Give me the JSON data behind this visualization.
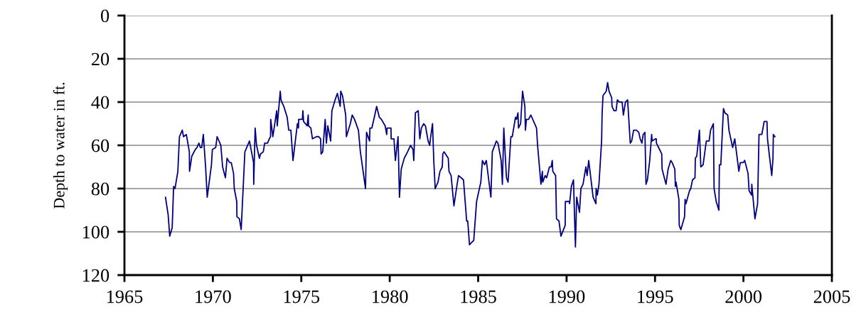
{
  "chart_data": {
    "type": "line",
    "ylabel": "Depth to water in ft.",
    "xlim": [
      1965,
      2005
    ],
    "xticks": [
      1965,
      1970,
      1975,
      1980,
      1985,
      1990,
      1995,
      2000,
      2005
    ],
    "ylim": [
      120,
      0
    ],
    "yticks": [
      0,
      20,
      40,
      60,
      80,
      100,
      120
    ],
    "grid": "y",
    "marker": "none",
    "line_style": "solid",
    "series": [
      {
        "color": "#000080",
        "x": [
          1967.32,
          1967.47,
          1967.56,
          1967.7,
          1967.78,
          1967.86,
          1968.02,
          1968.11,
          1968.27,
          1968.34,
          1968.5,
          1968.67,
          1968.68,
          1968.81,
          1969.0,
          1969.1,
          1969.21,
          1969.29,
          1969.37,
          1969.46,
          1969.59,
          1969.68,
          1969.92,
          1969.97,
          1970.16,
          1970.24,
          1970.45,
          1970.55,
          1970.71,
          1970.8,
          1970.95,
          1971.04,
          1971.17,
          1971.21,
          1971.35,
          1971.36,
          1971.5,
          1971.6,
          1971.81,
          1972.07,
          1972.3,
          1972.31,
          1972.39,
          1972.47,
          1972.63,
          1972.69,
          1972.85,
          1972.93,
          1973.09,
          1973.19,
          1973.26,
          1973.27,
          1973.39,
          1973.61,
          1973.64,
          1973.81,
          1973.85,
          1974.01,
          1974.2,
          1974.29,
          1974.41,
          1974.53,
          1974.78,
          1974.84,
          1974.85,
          1975.06,
          1975.09,
          1975.13,
          1975.33,
          1975.39,
          1975.41,
          1975.54,
          1975.63,
          1975.86,
          1975.99,
          1976.09,
          1976.12,
          1976.21,
          1976.35,
          1976.42,
          1976.5,
          1976.66,
          1976.73,
          1976.91,
          1977.04,
          1977.2,
          1977.23,
          1977.33,
          1977.51,
          1977.55,
          1977.77,
          1977.88,
          1978.01,
          1978.23,
          1978.34,
          1978.63,
          1978.69,
          1978.86,
          1978.88,
          1978.99,
          1979.13,
          1979.26,
          1979.41,
          1979.53,
          1979.74,
          1979.83,
          1979.85,
          1980.07,
          1980.08,
          1980.24,
          1980.32,
          1980.47,
          1980.55,
          1980.65,
          1980.82,
          1981.01,
          1981.18,
          1981.32,
          1981.36,
          1981.45,
          1981.61,
          1981.7,
          1981.79,
          1981.92,
          1982.02,
          1982.17,
          1982.26,
          1982.3,
          1982.42,
          1982.49,
          1982.57,
          1982.73,
          1982.84,
          1982.97,
          1983.0,
          1983.07,
          1983.31,
          1983.35,
          1983.47,
          1983.63,
          1983.81,
          1983.89,
          1984.04,
          1984.17,
          1984.35,
          1984.41,
          1984.51,
          1984.62,
          1984.75,
          1984.91,
          1985.15,
          1985.24,
          1985.36,
          1985.46,
          1985.72,
          1985.8,
          1986.03,
          1986.12,
          1986.3,
          1986.37,
          1986.45,
          1986.6,
          1986.69,
          1986.85,
          1986.93,
          1987.11,
          1987.17,
          1987.25,
          1987.28,
          1987.4,
          1987.51,
          1987.64,
          1987.67,
          1987.73,
          1987.85,
          1987.98,
          1988.14,
          1988.3,
          1988.36,
          1988.55,
          1988.63,
          1988.65,
          1988.79,
          1988.87,
          1989.03,
          1989.13,
          1989.19,
          1989.22,
          1989.38,
          1989.43,
          1989.57,
          1989.68,
          1989.92,
          1989.93,
          1990.16,
          1990.17,
          1990.27,
          1990.39,
          1990.5,
          1990.57,
          1990.73,
          1990.81,
          1990.93,
          1991.09,
          1991.16,
          1991.25,
          1991.5,
          1991.66,
          1991.67,
          1991.74,
          1991.83,
          1991.98,
          1992.01,
          1992.06,
          1992.24,
          1992.32,
          1992.4,
          1992.55,
          1992.57,
          1992.68,
          1992.8,
          1992.87,
          1992.98,
          1993.14,
          1993.21,
          1993.33,
          1993.45,
          1993.6,
          1993.68,
          1993.79,
          1993.95,
          1994.08,
          1994.16,
          1994.26,
          1994.33,
          1994.43,
          1994.49,
          1994.57,
          1994.7,
          1994.81,
          1994.84,
          1995.03,
          1995.07,
          1995.08,
          1995.2,
          1995.38,
          1995.4,
          1995.62,
          1995.74,
          1995.89,
          1995.97,
          1996.12,
          1996.15,
          1996.19,
          1996.35,
          1996.37,
          1996.46,
          1996.67,
          1996.7,
          1996.75,
          1996.95,
          1997.02,
          1997.12,
          1997.26,
          1997.28,
          1997.36,
          1997.51,
          1997.59,
          1997.72,
          1997.9,
          1998.06,
          1998.14,
          1998.3,
          1998.34,
          1998.46,
          1998.61,
          1998.64,
          1998.72,
          1998.87,
          1998.95,
          1999.11,
          1999.18,
          1999.39,
          1999.51,
          1999.74,
          1999.82,
          1999.99,
          2000.07,
          2000.26,
          2000.32,
          2000.46,
          2000.47,
          2000.65,
          2000.8,
          2000.88,
          2001.04,
          2001.17,
          2001.33,
          2001.36,
          2001.47,
          2001.6,
          2001.67,
          2001.69,
          2001.78
        ],
        "values": [
          84,
          92,
          102,
          98,
          79,
          80,
          72,
          56,
          53,
          56,
          55,
          63,
          72,
          65,
          62,
          61,
          59,
          61,
          61,
          55,
          70,
          84,
          69,
          62,
          61,
          56,
          60,
          70,
          75,
          66,
          68,
          68,
          73,
          80,
          86,
          93,
          94,
          99,
          63,
          58,
          68,
          78,
          52,
          60,
          66,
          64,
          63,
          59,
          59,
          57,
          56,
          48,
          56,
          44,
          51,
          35,
          39,
          42,
          47,
          53,
          53,
          67,
          50,
          52,
          48,
          48,
          44,
          49,
          51,
          46,
          51,
          52,
          57,
          56,
          56,
          57,
          64,
          63,
          48,
          59,
          51,
          58,
          44,
          39,
          36,
          42,
          35,
          37,
          46,
          56,
          50,
          46,
          48,
          53,
          63,
          80,
          54,
          58,
          52,
          52,
          47,
          42,
          47,
          48,
          51,
          55,
          52,
          52,
          57,
          57,
          67,
          56,
          84,
          71,
          66,
          63,
          60,
          62,
          67,
          45,
          44,
          57,
          52,
          50,
          51,
          58,
          60,
          57,
          50,
          67,
          80,
          77,
          72,
          70,
          64,
          63,
          66,
          72,
          74,
          88,
          78,
          74,
          75,
          76,
          95,
          95,
          106,
          105,
          104,
          86,
          77,
          67,
          69,
          67,
          84,
          63,
          58,
          59,
          67,
          78,
          52,
          75,
          77,
          56,
          56,
          47,
          48,
          45,
          52,
          50,
          35,
          42,
          53,
          48,
          48,
          46,
          49,
          52,
          60,
          78,
          72,
          77,
          74,
          75,
          70,
          70,
          67,
          72,
          74,
          94,
          95,
          102,
          97,
          86,
          86,
          87,
          79,
          76,
          107,
          84,
          91,
          80,
          78,
          70,
          74,
          67,
          84,
          87,
          80,
          83,
          78,
          58,
          45,
          37,
          35,
          31,
          35,
          38,
          42,
          44,
          44,
          39,
          40,
          40,
          46,
          40,
          39,
          59,
          58,
          53,
          53,
          54,
          57,
          59,
          55,
          54,
          78,
          76,
          67,
          55,
          58,
          57,
          57,
          59,
          61,
          64,
          71,
          78,
          71,
          67,
          68,
          71,
          79,
          77,
          85,
          97,
          99,
          93,
          85,
          87,
          81,
          80,
          76,
          75,
          66,
          65,
          53,
          70,
          69,
          58,
          58,
          53,
          50,
          80,
          86,
          90,
          69,
          69,
          43,
          45,
          46,
          53,
          61,
          57,
          72,
          68,
          68,
          67,
          73,
          81,
          83,
          78,
          94,
          87,
          55,
          55,
          49,
          49,
          57,
          65,
          74,
          66,
          55,
          56
        ]
      }
    ]
  }
}
